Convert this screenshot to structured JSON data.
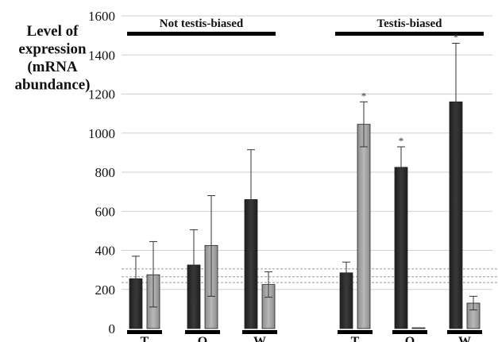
{
  "chart_data": {
    "type": "bar",
    "ylabel_lines": [
      "Level of",
      "expression",
      "(mRNA",
      "abundance)"
    ],
    "ylim": [
      0,
      1600
    ],
    "yticks": [
      0,
      200,
      400,
      600,
      800,
      1000,
      1200,
      1400,
      1600
    ],
    "grid": true,
    "groups": [
      {
        "label": "Not testis-biased",
        "categories": [
          "T",
          "O",
          "W"
        ]
      },
      {
        "label": "Testis-biased",
        "categories": [
          "T",
          "O",
          "W"
        ]
      }
    ],
    "series": [
      {
        "color": "#3a3a3a"
      },
      {
        "color": "#b8b8b8"
      }
    ],
    "bars": [
      {
        "group": 0,
        "category": "T",
        "series": 0,
        "value": 255,
        "err_low": 170,
        "err_high": 370,
        "star": ""
      },
      {
        "group": 0,
        "category": "T",
        "series": 1,
        "value": 275,
        "err_low": 110,
        "err_high": 445,
        "star": ""
      },
      {
        "group": 0,
        "category": "O",
        "series": 0,
        "value": 325,
        "err_low": 145,
        "err_high": 505,
        "star": ""
      },
      {
        "group": 0,
        "category": "O",
        "series": 1,
        "value": 425,
        "err_low": 165,
        "err_high": 680,
        "star": ""
      },
      {
        "group": 0,
        "category": "W",
        "series": 0,
        "value": 660,
        "err_low": 405,
        "err_high": 915,
        "star": ""
      },
      {
        "group": 0,
        "category": "W",
        "series": 1,
        "value": 225,
        "err_low": 160,
        "err_high": 290,
        "star": ""
      },
      {
        "group": 1,
        "category": "T",
        "series": 0,
        "value": 285,
        "err_low": 240,
        "err_high": 340,
        "star": ""
      },
      {
        "group": 1,
        "category": "T",
        "series": 1,
        "value": 1045,
        "err_low": 930,
        "err_high": 1160,
        "star": "*"
      },
      {
        "group": 1,
        "category": "O",
        "series": 0,
        "value": 825,
        "err_low": 720,
        "err_high": 930,
        "star": "*"
      },
      {
        "group": 1,
        "category": "O",
        "series": 1,
        "value": 4,
        "err_low": 4,
        "err_high": 4,
        "star": ""
      },
      {
        "group": 1,
        "category": "W",
        "series": 0,
        "value": 1160,
        "err_low": 875,
        "err_high": 1460,
        "star": "*"
      },
      {
        "group": 1,
        "category": "W",
        "series": 1,
        "value": 130,
        "err_low": 95,
        "err_high": 165,
        "star": ""
      }
    ],
    "threshold_lines": [
      305,
      265,
      235
    ]
  }
}
